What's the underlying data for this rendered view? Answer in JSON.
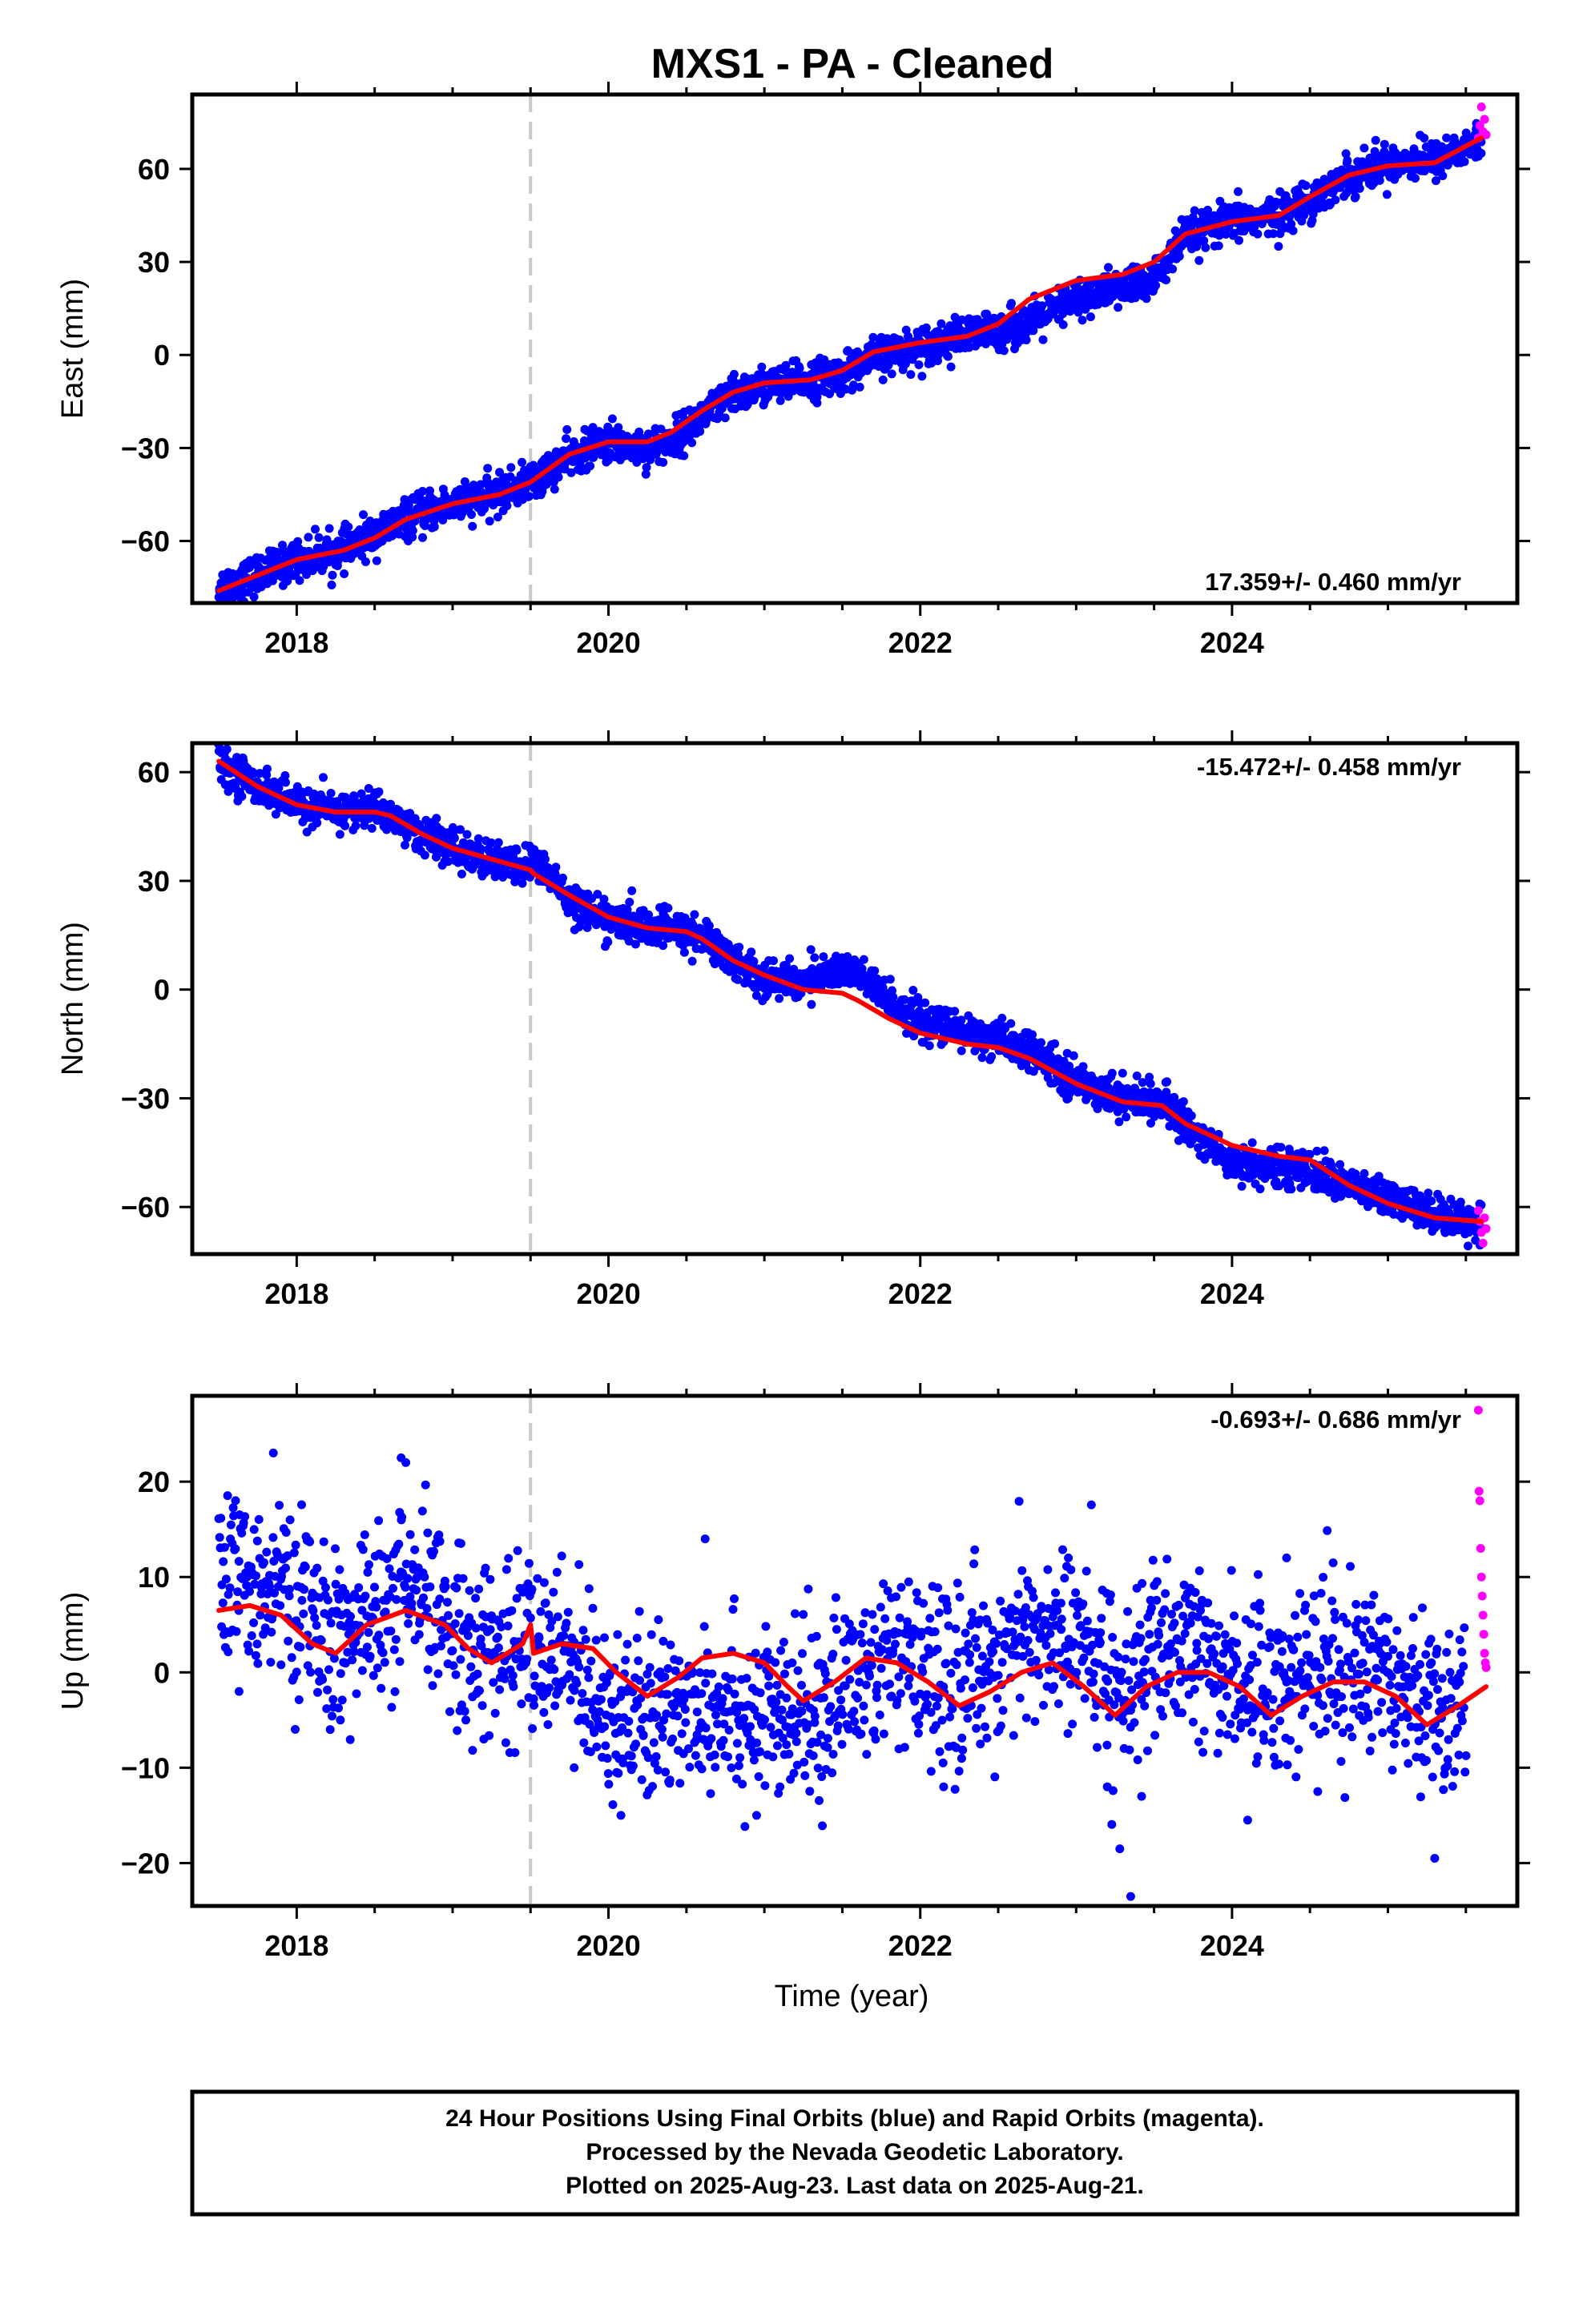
{
  "page": {
    "footer_lines": [
      "24 Hour Positions Using Final Orbits (blue) and Rapid Orbits (magenta).",
      "Processed by the Nevada Geodetic Laboratory.",
      "Plotted on 2025-Aug-23. Last data on 2025-Aug-21."
    ]
  },
  "colors": {
    "final_orbits": "#0000ff",
    "rapid_orbits": "#ff00ff",
    "model": "#ff0000",
    "event_line": "#c8c8c8"
  },
  "chart_data": [
    {
      "type": "scatter",
      "title": "MXS1  - PA - Cleaned",
      "xlabel": "",
      "ylabel": "East (mm)",
      "xlim": [
        2017.33,
        2025.83
      ],
      "ylim": [
        -80,
        84
      ],
      "xticks": [
        2018,
        2020,
        2022,
        2024
      ],
      "xtick_labels": [
        "2018",
        "2020",
        "2022",
        "2024"
      ],
      "yticks": [
        -60,
        -30,
        0,
        30,
        60
      ],
      "ytick_labels": [
        "−60",
        "−30",
        "0",
        "30",
        "60"
      ],
      "rate_label": "17.359+/- 0.460 mm/yr",
      "rate_position": "bottom-right",
      "event_line_x": 2019.5,
      "final_orbits_trend": {
        "x": [
          2017.5,
          2017.8,
          2018.0,
          2018.3,
          2018.5,
          2018.7,
          2019.0,
          2019.3,
          2019.5,
          2019.75,
          2020.0,
          2020.25,
          2020.4,
          2020.6,
          2020.8,
          2021.0,
          2021.3,
          2021.5,
          2021.7,
          2022.0,
          2022.3,
          2022.5,
          2022.7,
          2023.0,
          2023.3,
          2023.5,
          2023.7,
          2024.0,
          2024.3,
          2024.5,
          2024.75,
          2025.0,
          2025.3,
          2025.6
        ],
        "y": [
          -75,
          -70,
          -66,
          -63,
          -58,
          -53,
          -48,
          -45,
          -41,
          -33,
          -28,
          -30,
          -28,
          -20,
          -13,
          -10,
          -8,
          -6,
          -1,
          3,
          6,
          8,
          10,
          18,
          22,
          24,
          38,
          43,
          45,
          50,
          58,
          62,
          63,
          69
        ]
      },
      "rapid_orbits": {
        "x": [
          2025.58,
          2025.59,
          2025.6,
          2025.61,
          2025.62,
          2025.63
        ],
        "y": [
          70,
          74,
          80,
          72,
          76,
          71
        ]
      },
      "model": {
        "x": [
          2017.5,
          2017.8,
          2018.0,
          2018.3,
          2018.5,
          2018.7,
          2019.0,
          2019.3,
          2019.5,
          2019.75,
          2020.0,
          2020.25,
          2020.4,
          2020.6,
          2020.8,
          2021.0,
          2021.3,
          2021.5,
          2021.7,
          2022.0,
          2022.3,
          2022.5,
          2022.7,
          2023.0,
          2023.3,
          2023.5,
          2023.7,
          2024.0,
          2024.3,
          2024.5,
          2024.75,
          2025.0,
          2025.3,
          2025.6
        ],
        "y": [
          -76,
          -70,
          -66,
          -63,
          -59,
          -53,
          -48,
          -45,
          -41,
          -32,
          -28,
          -28,
          -25,
          -18,
          -12,
          -9,
          -8,
          -5,
          1,
          4,
          6,
          10,
          18,
          24,
          26,
          30,
          39,
          43,
          45,
          51,
          58,
          61,
          62,
          70
        ]
      },
      "scatter_spread": 3
    },
    {
      "type": "scatter",
      "title": "",
      "xlabel": "",
      "ylabel": "North (mm)",
      "xlim": [
        2017.33,
        2025.83
      ],
      "ylim": [
        -73,
        68
      ],
      "xticks": [
        2018,
        2020,
        2022,
        2024
      ],
      "xtick_labels": [
        "2018",
        "2020",
        "2022",
        "2024"
      ],
      "yticks": [
        -60,
        -30,
        0,
        30,
        60
      ],
      "ytick_labels": [
        "−60",
        "−30",
        "0",
        "30",
        "60"
      ],
      "rate_label": "-15.472+/- 0.458 mm/yr",
      "rate_position": "top-right",
      "event_line_x": 2019.5,
      "final_orbits_trend": {
        "x": [
          2017.5,
          2017.75,
          2018.0,
          2018.25,
          2018.5,
          2018.6,
          2018.8,
          2019.0,
          2019.25,
          2019.45,
          2019.55,
          2019.75,
          2020.0,
          2020.25,
          2020.5,
          2020.6,
          2020.8,
          2021.0,
          2021.25,
          2021.5,
          2021.6,
          2021.8,
          2022.0,
          2022.3,
          2022.5,
          2022.7,
          2023.0,
          2023.3,
          2023.55,
          2023.7,
          2024.0,
          2024.3,
          2024.5,
          2024.75,
          2025.0,
          2025.3,
          2025.6
        ],
        "y": [
          63,
          56,
          51,
          49,
          50,
          48,
          43,
          39,
          35,
          34,
          35,
          25,
          19,
          17,
          16,
          15,
          8,
          3,
          2,
          6,
          4,
          -3,
          -9,
          -12,
          -14,
          -17,
          -25,
          -30,
          -31,
          -37,
          -48,
          -49,
          -50,
          -54,
          -58,
          -62,
          -64
        ]
      },
      "rapid_orbits": {
        "x": [
          2025.58,
          2025.59,
          2025.6,
          2025.61,
          2025.62,
          2025.63
        ],
        "y": [
          -61,
          -64,
          -67,
          -70,
          -63,
          -66
        ]
      },
      "model": {
        "x": [
          2017.5,
          2017.75,
          2018.0,
          2018.25,
          2018.5,
          2018.6,
          2018.8,
          2019.0,
          2019.25,
          2019.5,
          2019.52,
          2019.75,
          2020.0,
          2020.25,
          2020.5,
          2020.6,
          2020.8,
          2021.0,
          2021.25,
          2021.5,
          2021.6,
          2021.8,
          2022.0,
          2022.3,
          2022.5,
          2022.7,
          2023.0,
          2023.3,
          2023.55,
          2023.7,
          2024.0,
          2024.3,
          2024.5,
          2024.75,
          2025.0,
          2025.3,
          2025.6
        ],
        "y": [
          63,
          56,
          51,
          49,
          49,
          48,
          43,
          39,
          36,
          33,
          32,
          26,
          20,
          17,
          16,
          14,
          8,
          4,
          0,
          -1,
          -3,
          -8,
          -12,
          -15,
          -16,
          -19,
          -26,
          -31,
          -32,
          -37,
          -43,
          -46,
          -47,
          -54,
          -59,
          -63,
          -64
        ]
      },
      "scatter_spread": 2.5
    },
    {
      "type": "scatter",
      "title": "",
      "xlabel": "Time (year)",
      "ylabel": "Up (mm)",
      "xlim": [
        2017.33,
        2025.83
      ],
      "ylim": [
        -24.5,
        29
      ],
      "xticks": [
        2018,
        2020,
        2022,
        2024
      ],
      "xtick_labels": [
        "2018",
        "2020",
        "2022",
        "2024"
      ],
      "yticks": [
        -20,
        -10,
        0,
        10,
        20
      ],
      "ytick_labels": [
        "−20",
        "−10",
        "0",
        "10",
        "20"
      ],
      "rate_label": "-0.693+/- 0.686 mm/yr",
      "rate_position": "top-right",
      "event_line_x": 2019.5,
      "final_orbits_trend": {
        "x": [
          2017.5,
          2017.75,
          2018.0,
          2018.25,
          2018.5,
          2018.75,
          2019.0,
          2019.25,
          2019.5,
          2019.75,
          2020.0,
          2020.25,
          2020.5,
          2020.75,
          2021.0,
          2021.25,
          2021.5,
          2021.75,
          2022.0,
          2022.25,
          2022.5,
          2022.75,
          2023.0,
          2023.25,
          2023.5,
          2023.75,
          2024.0,
          2024.25,
          2024.5,
          2024.75,
          2025.0,
          2025.25,
          2025.5
        ],
        "y": [
          9,
          10,
          7,
          3,
          6,
          8,
          5,
          2,
          3,
          1,
          -3,
          -6,
          -3,
          -3,
          -5,
          -5,
          -2,
          1,
          0,
          -1,
          2,
          4,
          3,
          -1,
          1,
          2,
          0,
          -2,
          1,
          0,
          1,
          -3,
          -4
        ]
      },
      "rapid_orbits": {
        "x": [
          2025.58,
          2025.585,
          2025.59,
          2025.595,
          2025.6,
          2025.605,
          2025.61,
          2025.615,
          2025.62,
          2025.625,
          2025.63
        ],
        "y": [
          27.5,
          19,
          18,
          13,
          10,
          8,
          6,
          4,
          2,
          1,
          0.5
        ]
      },
      "model": {
        "x": [
          2017.5,
          2017.7,
          2017.9,
          2018.1,
          2018.25,
          2018.45,
          2018.7,
          2018.95,
          2019.1,
          2019.25,
          2019.45,
          2019.5,
          2019.52,
          2019.7,
          2019.9,
          2020.05,
          2020.25,
          2020.45,
          2020.6,
          2020.8,
          2021.0,
          2021.15,
          2021.25,
          2021.45,
          2021.65,
          2021.85,
          2022.05,
          2022.25,
          2022.45,
          2022.65,
          2022.85,
          2023.05,
          2023.25,
          2023.45,
          2023.65,
          2023.85,
          2024.05,
          2024.25,
          2024.45,
          2024.65,
          2024.85,
          2025.05,
          2025.25,
          2025.45,
          2025.63
        ],
        "y": [
          6.5,
          7,
          6,
          3,
          2,
          5,
          6.5,
          5,
          2.5,
          1,
          3,
          5,
          2,
          3,
          2.5,
          0,
          -2.5,
          -0.5,
          1.5,
          2,
          1,
          -1.5,
          -3,
          -1,
          1.5,
          1,
          -1,
          -3.5,
          -2,
          0,
          1,
          -1.5,
          -4.5,
          -1.5,
          0,
          0,
          -1.5,
          -4.5,
          -2.5,
          -1,
          -1,
          -2.5,
          -5.5,
          -3.5,
          -1.5
        ]
      },
      "outliers": {
        "x": [
          2017.63,
          2017.85,
          2018.28,
          2018.67,
          2018.7,
          2019.2,
          2019.78,
          2020.08,
          2020.62,
          2020.95,
          2021.1,
          2022.15,
          2022.95,
          2023.2,
          2023.28,
          2023.35,
          2023.42,
          2024.1,
          2024.35,
          2024.55,
          2025.3
        ],
        "y": [
          -2,
          23,
          -5,
          22.5,
          22,
          -7,
          -10,
          -15,
          14,
          -15,
          -12,
          -12,
          12,
          -12,
          -18.5,
          -23.5,
          -13,
          -15.5,
          12,
          -12.5,
          -19.5
        ]
      },
      "scatter_spread": 4.5
    }
  ]
}
